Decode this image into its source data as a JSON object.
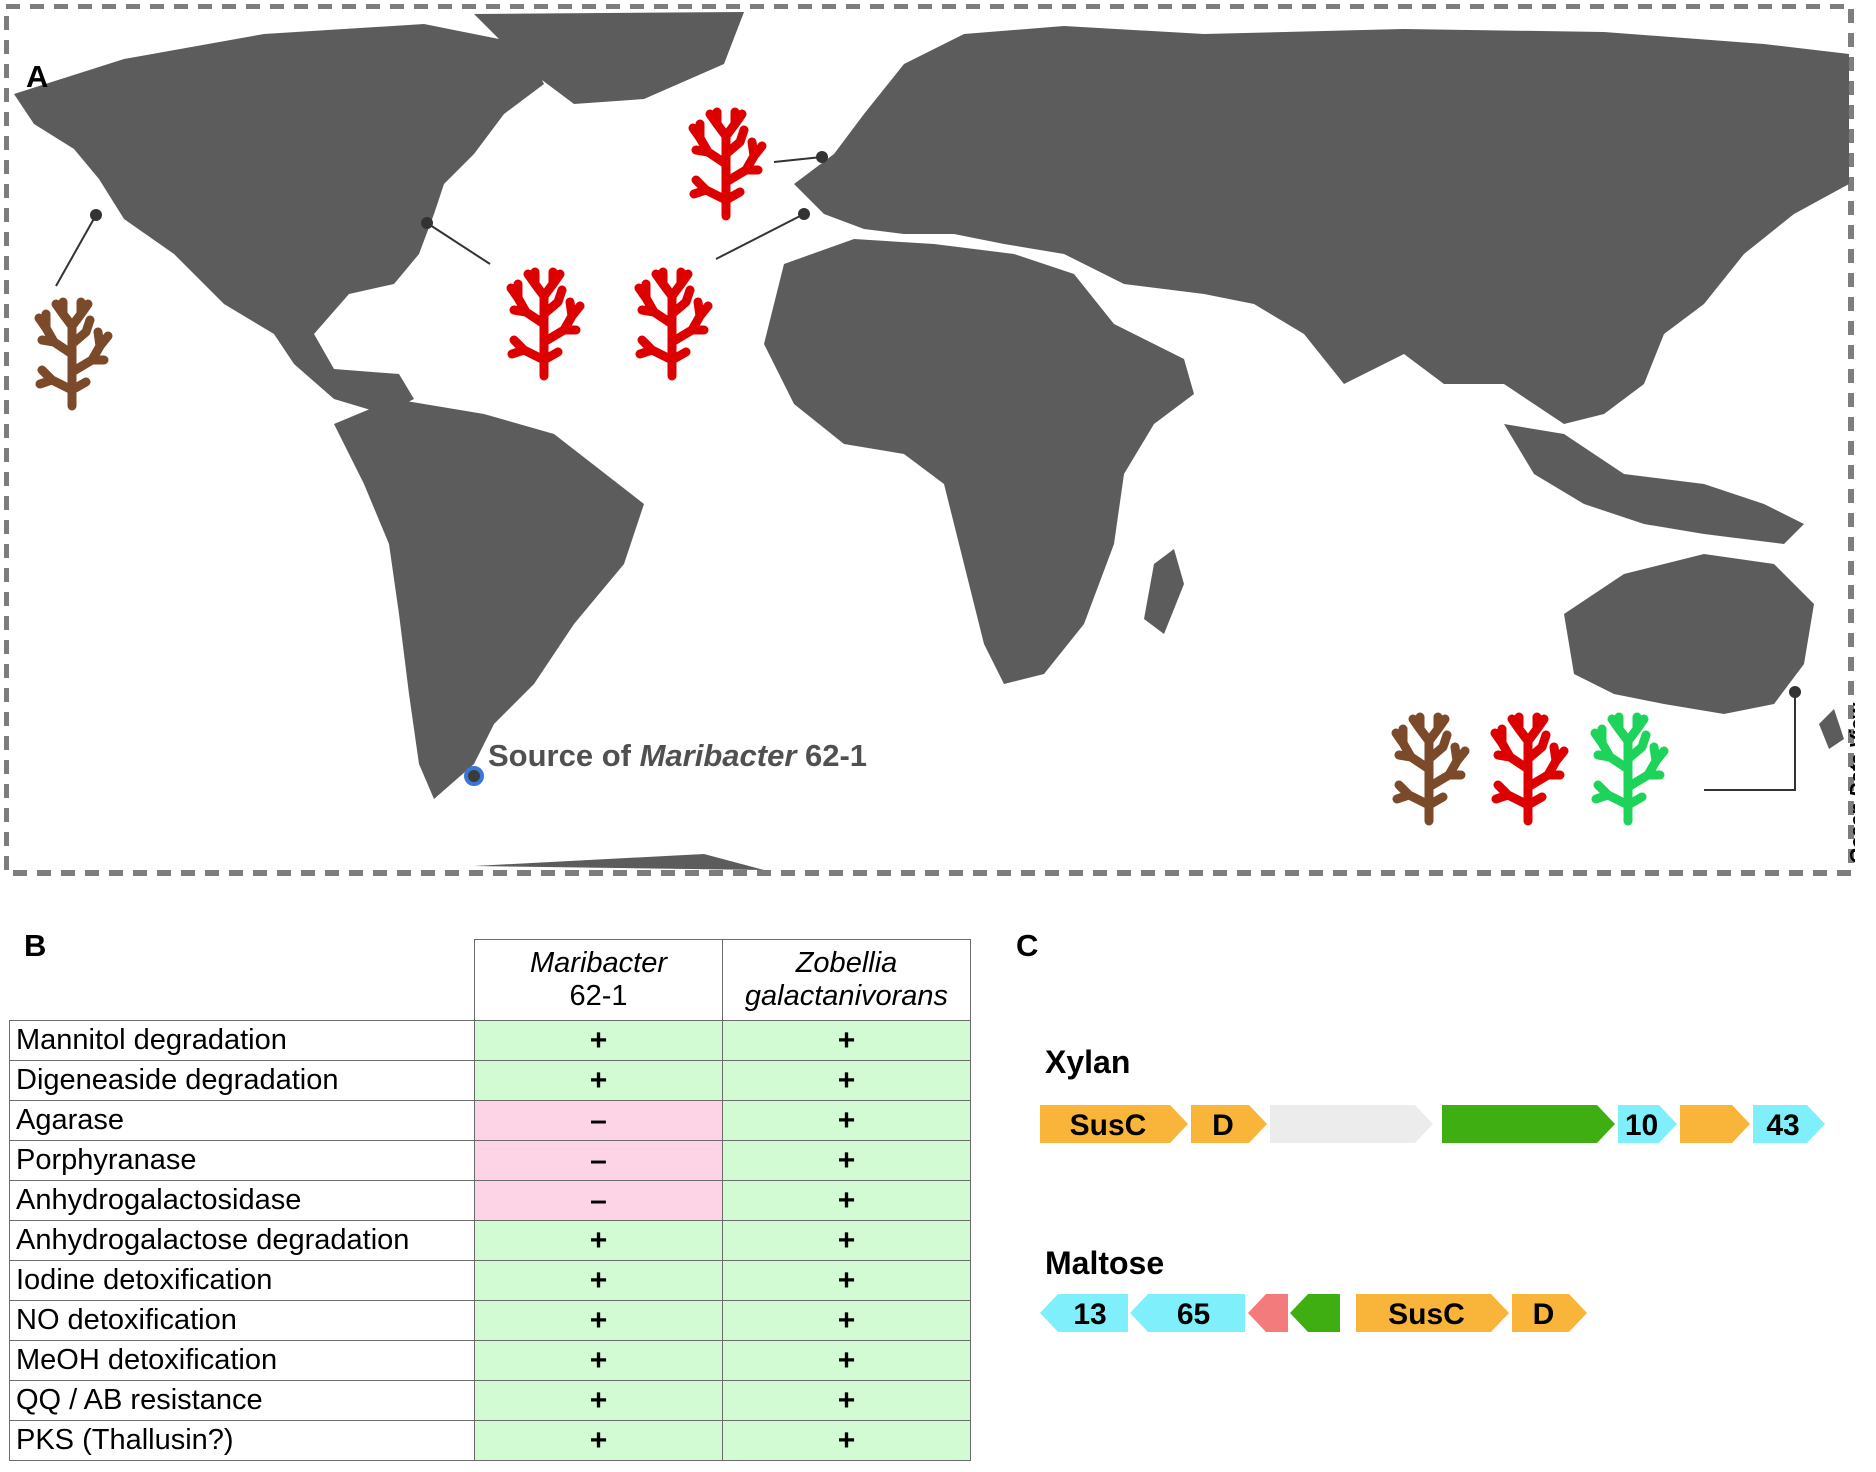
{
  "panel_a": {
    "letter": "A",
    "source_label_prefix": "Source of ",
    "source_label_italic": "Maribacter",
    "source_label_suffix": " 62-1",
    "credit": "Ocean Data View",
    "colors": {
      "land": "#5c5c5c",
      "brown_alga": "#7a4a2a",
      "red_alga": "#dd0000",
      "green_alga": "#1ed35a",
      "source_marker": "#3a76d8"
    }
  },
  "panel_b": {
    "letter": "B",
    "columns": [
      {
        "line1": "Maribacter",
        "line2": "62-1"
      },
      {
        "line1": "Zobellia",
        "line2": "galactanivorans"
      }
    ],
    "rows": [
      {
        "label": "Mannitol degradation",
        "values": [
          "+",
          "+"
        ]
      },
      {
        "label": "Digeneaside degradation",
        "values": [
          "+",
          "+"
        ]
      },
      {
        "label": "Agarase",
        "values": [
          "–",
          "+"
        ]
      },
      {
        "label": "Porphyranase",
        "values": [
          "–",
          "+"
        ]
      },
      {
        "label": "Anhydrogalactosidase",
        "values": [
          "–",
          "+"
        ]
      },
      {
        "label": "Anhydrogalactose degradation",
        "values": [
          "+",
          "+"
        ]
      },
      {
        "label": "Iodine detoxification",
        "values": [
          "+",
          "+"
        ]
      },
      {
        "label": "NO detoxification",
        "values": [
          "+",
          "+"
        ]
      },
      {
        "label": "MeOH detoxification",
        "values": [
          "+",
          "+"
        ]
      },
      {
        "label": "QQ / AB resistance",
        "values": [
          "+",
          "+"
        ]
      },
      {
        "label": "PKS (Thallusin?)",
        "values": [
          "+",
          "+"
        ]
      }
    ],
    "colors": {
      "present": "#d3fbd3",
      "absent": "#fdd4e6"
    }
  },
  "panel_c": {
    "letter": "C",
    "colors": {
      "sus": "#f9b43a",
      "cazyme": "#7ff0fb",
      "regulator": "#3fae12",
      "other": "#ececec",
      "peptidase": "#f47b7b"
    },
    "loci": [
      {
        "name": "Xylan",
        "genes": [
          {
            "label": "SusC",
            "color": "sus",
            "dir": "fwd"
          },
          {
            "label": "D",
            "color": "sus",
            "dir": "fwd"
          },
          {
            "label": "",
            "color": "other",
            "dir": "fwd"
          },
          {
            "label": "",
            "color": "regulator",
            "dir": "fwd"
          },
          {
            "label": "10",
            "color": "cazyme",
            "dir": "fwd"
          },
          {
            "label": "",
            "color": "sus",
            "dir": "fwd"
          },
          {
            "label": "43",
            "color": "cazyme",
            "dir": "fwd"
          }
        ]
      },
      {
        "name": "Maltose",
        "genes": [
          {
            "label": "13",
            "color": "cazyme",
            "dir": "rev"
          },
          {
            "label": "65",
            "color": "cazyme",
            "dir": "rev"
          },
          {
            "label": "",
            "color": "peptidase",
            "dir": "rev"
          },
          {
            "label": "",
            "color": "regulator",
            "dir": "rev"
          },
          {
            "label": "SusC",
            "color": "sus",
            "dir": "fwd"
          },
          {
            "label": "D",
            "color": "sus",
            "dir": "fwd"
          }
        ]
      }
    ]
  }
}
